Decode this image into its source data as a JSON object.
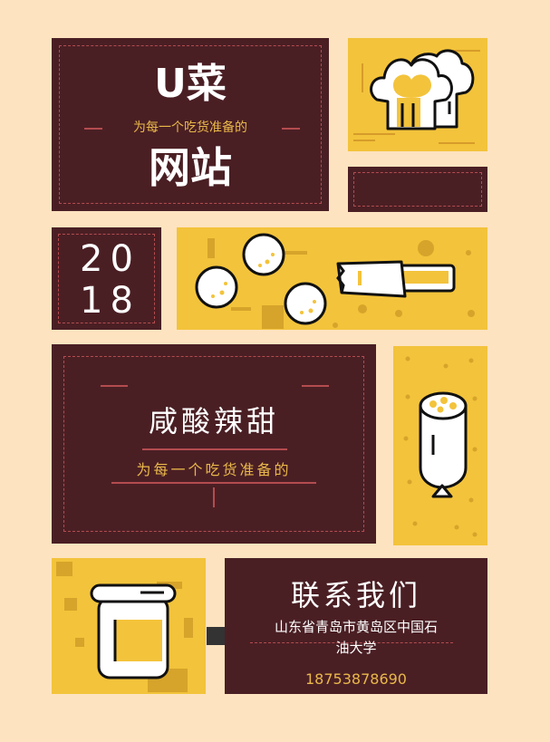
{
  "brand": {
    "title": "U菜",
    "tagline": "为每一个吃货准备的",
    "subtitle": "网站"
  },
  "year": {
    "top": "20",
    "bottom": "18"
  },
  "flavor": {
    "title": "咸酸辣甜",
    "tagline": "为每一个吃货准备的"
  },
  "contact": {
    "title": "联系我们",
    "address_line1": "山东省青岛市黄岛区中国石",
    "address_line2": "油大学",
    "phone": "18753878690"
  },
  "colors": {
    "maroon": "#4a1f24",
    "yellow": "#f3c33b",
    "cream": "#fde3bf",
    "dash": "#b34c4f",
    "gold": "#e9b84a"
  },
  "icons": [
    "chef-hat-icon",
    "meatballs-icon",
    "sausage-icon",
    "popsicle-icon",
    "jar-icon"
  ]
}
